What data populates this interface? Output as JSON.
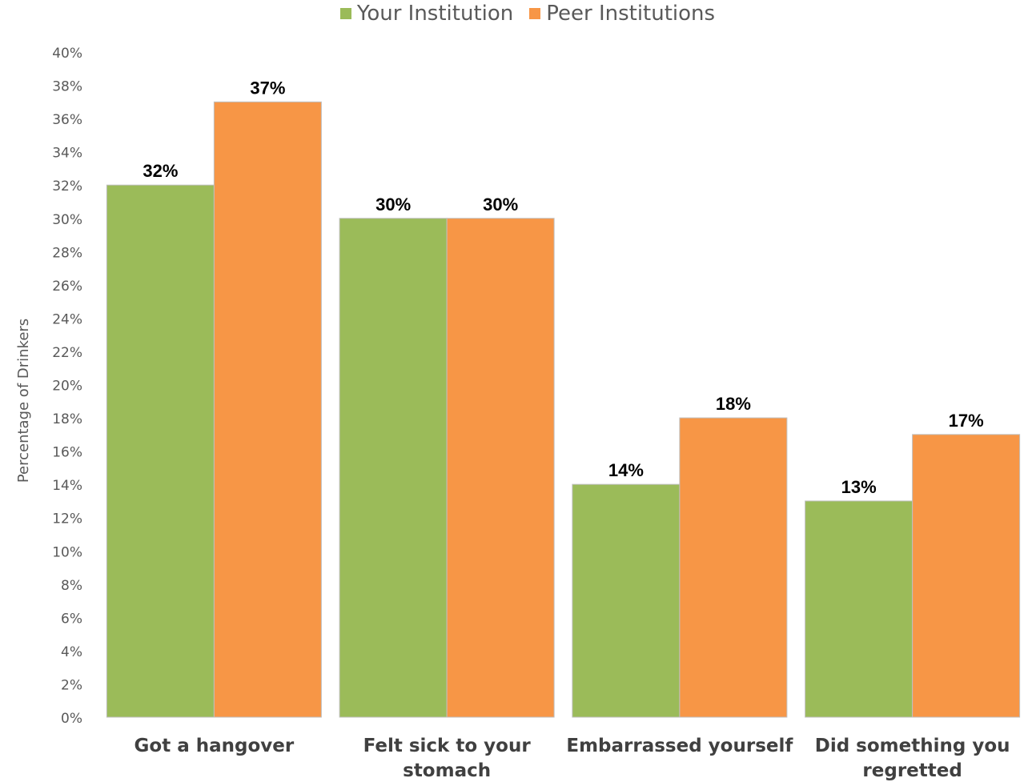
{
  "chart_data": {
    "type": "bar",
    "categories": [
      "Got a hangover",
      "Felt sick to your stomach",
      "Embarrassed yourself",
      "Did something you regretted"
    ],
    "category_lines": [
      [
        "Got a hangover"
      ],
      [
        "Felt sick to your",
        "stomach"
      ],
      [
        "Embarrassed yourself"
      ],
      [
        "Did something you",
        "regretted"
      ]
    ],
    "series": [
      {
        "name": "Your Institution",
        "color": "#9BBB59",
        "values": [
          32,
          30,
          14,
          13
        ],
        "labels": [
          "32%",
          "30%",
          "14%",
          "13%"
        ]
      },
      {
        "name": "Peer Institutions",
        "color": "#F79646",
        "values": [
          37,
          30,
          18,
          17
        ],
        "labels": [
          "37%",
          "30%",
          "18%",
          "17%"
        ]
      }
    ],
    "ylabel": "Percentage of Drinkers",
    "ylim": [
      0,
      40
    ],
    "yticks": [
      "0%",
      "2%",
      "4%",
      "6%",
      "8%",
      "10%",
      "12%",
      "14%",
      "16%",
      "18%",
      "20%",
      "22%",
      "24%",
      "26%",
      "28%",
      "30%",
      "32%",
      "34%",
      "36%",
      "38%",
      "40%"
    ],
    "grid": false,
    "legend_position": "top-center"
  }
}
